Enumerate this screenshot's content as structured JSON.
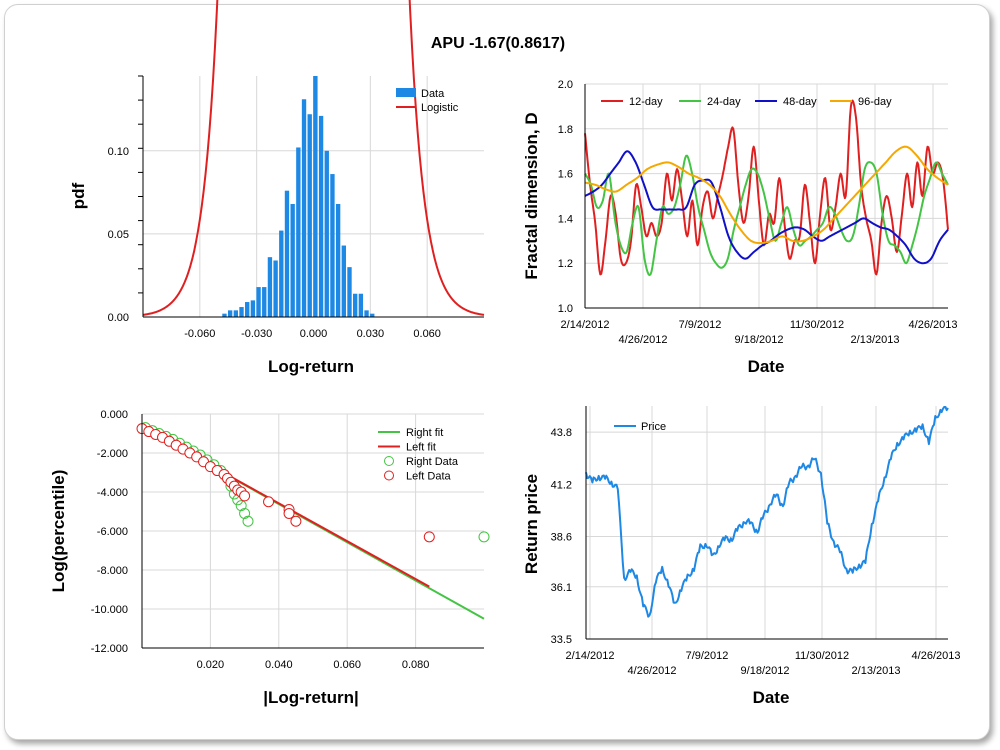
{
  "title": "APU -1.67(0.8617)",
  "colors": {
    "blue": "#1e88e5",
    "red": "#e02020",
    "green": "#44c444",
    "navy": "#1010c8",
    "orange": "#f5a800",
    "grid": "#d8d8d8"
  },
  "chart_data": [
    {
      "type": "bar",
      "name": "histogram",
      "xlabel": "Log-return",
      "ylabel": "pdf",
      "xlim": [
        -0.09,
        0.09
      ],
      "ylim": [
        0,
        0.145
      ],
      "xticks": [
        -0.06,
        -0.03,
        0.0,
        0.03,
        0.06
      ],
      "xtick_labels": [
        "-0.060",
        "-0.030",
        "0.000",
        "0.030",
        "0.060"
      ],
      "yticks": [
        0,
        0.05,
        0.1
      ],
      "ytick_labels": [
        "0.00",
        "0.05",
        "0.10"
      ],
      "legend": [
        "Data",
        "Logistic"
      ],
      "legend_position": "top-right",
      "bin_width": 0.0027,
      "bins": [
        {
          "x": -0.047,
          "y": 0.002
        },
        {
          "x": -0.044,
          "y": 0.004
        },
        {
          "x": -0.041,
          "y": 0.004
        },
        {
          "x": -0.038,
          "y": 0.006
        },
        {
          "x": -0.035,
          "y": 0.009
        },
        {
          "x": -0.032,
          "y": 0.01
        },
        {
          "x": -0.029,
          "y": 0.018
        },
        {
          "x": -0.026,
          "y": 0.018
        },
        {
          "x": -0.023,
          "y": 0.036
        },
        {
          "x": -0.02,
          "y": 0.034
        },
        {
          "x": -0.017,
          "y": 0.052
        },
        {
          "x": -0.014,
          "y": 0.076
        },
        {
          "x": -0.011,
          "y": 0.068
        },
        {
          "x": -0.008,
          "y": 0.102
        },
        {
          "x": -0.005,
          "y": 0.131
        },
        {
          "x": -0.002,
          "y": 0.122
        },
        {
          "x": 0.001,
          "y": 0.145
        },
        {
          "x": 0.004,
          "y": 0.121
        },
        {
          "x": 0.007,
          "y": 0.1
        },
        {
          "x": 0.01,
          "y": 0.086
        },
        {
          "x": 0.013,
          "y": 0.068
        },
        {
          "x": 0.016,
          "y": 0.043
        },
        {
          "x": 0.019,
          "y": 0.03
        },
        {
          "x": 0.022,
          "y": 0.014
        },
        {
          "x": 0.025,
          "y": 0.014
        },
        {
          "x": 0.028,
          "y": 0.004
        },
        {
          "x": 0.031,
          "y": 0.002
        }
      ],
      "logistic": {
        "mu": 0.0,
        "s": 0.0078
      }
    },
    {
      "type": "line",
      "name": "fractal",
      "xlabel": "Date",
      "ylabel": "Fractal dimension, D",
      "ylim": [
        1.0,
        2.0
      ],
      "yticks": [
        1.0,
        1.2,
        1.4,
        1.6,
        1.8,
        2.0
      ],
      "ytick_labels": [
        "1.0",
        "1.2",
        "1.4",
        "1.6",
        "1.8",
        "2.0"
      ],
      "xtick_labels_upper": [
        "2/14/2012",
        "7/9/2012",
        "11/30/2012",
        "4/26/2013"
      ],
      "xtick_labels_lower": [
        "4/26/2012",
        "9/18/2012",
        "2/13/2013"
      ],
      "legend": [
        "12-day",
        "24-day",
        "48-day",
        "96-day"
      ],
      "legend_position": "top",
      "series": [
        {
          "name": "12-day",
          "values": [
            1.78,
            1.55,
            1.38,
            1.15,
            1.3,
            1.5,
            1.42,
            1.22,
            1.2,
            1.3,
            1.55,
            1.45,
            1.32,
            1.38,
            1.32,
            1.38,
            1.6,
            1.48,
            1.62,
            1.48,
            1.32,
            1.48,
            1.28,
            1.45,
            1.52,
            1.4,
            1.5,
            1.6,
            1.72,
            1.8,
            1.55,
            1.38,
            1.5,
            1.72,
            1.48,
            1.28,
            1.42,
            1.38,
            1.58,
            1.38,
            1.22,
            1.3,
            1.32,
            1.55,
            1.38,
            1.2,
            1.42,
            1.58,
            1.35,
            1.45,
            1.6,
            1.5,
            1.9,
            1.85,
            1.55,
            1.4,
            1.3,
            1.15,
            1.38,
            1.5,
            1.4,
            1.25,
            1.42,
            1.6,
            1.45,
            1.65,
            1.5,
            1.72,
            1.6,
            1.65,
            1.58,
            1.35
          ]
        },
        {
          "name": "24-day",
          "values": [
            1.6,
            1.55,
            1.45,
            1.48,
            1.6,
            1.4,
            1.28,
            1.25,
            1.38,
            1.45,
            1.22,
            1.15,
            1.3,
            1.45,
            1.42,
            1.45,
            1.55,
            1.68,
            1.6,
            1.45,
            1.35,
            1.25,
            1.2,
            1.18,
            1.22,
            1.35,
            1.45,
            1.55,
            1.62,
            1.6,
            1.52,
            1.4,
            1.3,
            1.38,
            1.45,
            1.35,
            1.28,
            1.3,
            1.32,
            1.35,
            1.38,
            1.45,
            1.42,
            1.35,
            1.3,
            1.32,
            1.45,
            1.62,
            1.65,
            1.6,
            1.42,
            1.3,
            1.28,
            1.25,
            1.2,
            1.28,
            1.38,
            1.5,
            1.58,
            1.65,
            1.6,
            1.55
          ]
        },
        {
          "name": "48-day",
          "values": [
            1.5,
            1.52,
            1.55,
            1.6,
            1.65,
            1.7,
            1.65,
            1.55,
            1.45,
            1.44,
            1.44,
            1.44,
            1.45,
            1.55,
            1.57,
            1.56,
            1.45,
            1.32,
            1.25,
            1.22,
            1.25,
            1.28,
            1.3,
            1.33,
            1.35,
            1.36,
            1.35,
            1.32,
            1.3,
            1.32,
            1.34,
            1.36,
            1.38,
            1.4,
            1.38,
            1.36,
            1.35,
            1.32,
            1.28,
            1.22,
            1.2,
            1.22,
            1.3,
            1.35
          ]
        },
        {
          "name": "96-day",
          "values": [
            1.56,
            1.55,
            1.53,
            1.52,
            1.55,
            1.58,
            1.62,
            1.64,
            1.65,
            1.63,
            1.6,
            1.58,
            1.55,
            1.5,
            1.42,
            1.35,
            1.3,
            1.29,
            1.3,
            1.32,
            1.3,
            1.3,
            1.32,
            1.35,
            1.4,
            1.45,
            1.5,
            1.55,
            1.6,
            1.65,
            1.7,
            1.72,
            1.68,
            1.62,
            1.58,
            1.55
          ]
        }
      ]
    },
    {
      "type": "scatter",
      "name": "tail",
      "xlabel": "|Log-return|",
      "ylabel": "Log(percentile)",
      "xlim": [
        0,
        0.1
      ],
      "ylim": [
        -12,
        0
      ],
      "xticks": [
        0.02,
        0.04,
        0.06,
        0.08
      ],
      "xtick_labels": [
        "0.020",
        "0.040",
        "0.060",
        "0.080"
      ],
      "yticks": [
        0,
        -2,
        -4,
        -6,
        -8,
        -10,
        -12
      ],
      "ytick_labels": [
        "0.000",
        "-2.000",
        "-4.000",
        "-6.000",
        "-8.000",
        "-10.000",
        "-12.000"
      ],
      "legend": [
        "Right fit",
        "Left fit",
        "Right Data",
        "Left Data"
      ],
      "legend_position": "top-right",
      "right_fit": [
        [
          0,
          -0.7
        ],
        [
          0.1,
          -10.5
        ]
      ],
      "left_fit": [
        [
          0,
          -0.7
        ],
        [
          0.084,
          -8.85
        ]
      ],
      "right_data": [
        [
          0.001,
          -0.7
        ],
        [
          0.003,
          -0.85
        ],
        [
          0.005,
          -1.0
        ],
        [
          0.007,
          -1.15
        ],
        [
          0.009,
          -1.3
        ],
        [
          0.011,
          -1.5
        ],
        [
          0.013,
          -1.7
        ],
        [
          0.015,
          -1.9
        ],
        [
          0.017,
          -2.1
        ],
        [
          0.019,
          -2.35
        ],
        [
          0.021,
          -2.6
        ],
        [
          0.023,
          -2.9
        ],
        [
          0.025,
          -3.3
        ],
        [
          0.026,
          -3.7
        ],
        [
          0.027,
          -4.1
        ],
        [
          0.028,
          -4.4
        ],
        [
          0.029,
          -4.7
        ],
        [
          0.03,
          -5.1
        ],
        [
          0.031,
          -5.5
        ],
        [
          0.1,
          -6.3
        ]
      ],
      "left_data": [
        [
          0.0,
          -0.75
        ],
        [
          0.002,
          -0.9
        ],
        [
          0.004,
          -1.05
        ],
        [
          0.006,
          -1.2
        ],
        [
          0.008,
          -1.4
        ],
        [
          0.01,
          -1.6
        ],
        [
          0.012,
          -1.8
        ],
        [
          0.014,
          -2.0
        ],
        [
          0.016,
          -2.2
        ],
        [
          0.018,
          -2.45
        ],
        [
          0.02,
          -2.7
        ],
        [
          0.022,
          -2.9
        ],
        [
          0.024,
          -3.1
        ],
        [
          0.025,
          -3.3
        ],
        [
          0.026,
          -3.5
        ],
        [
          0.027,
          -3.7
        ],
        [
          0.028,
          -3.9
        ],
        [
          0.029,
          -4.0
        ],
        [
          0.03,
          -4.2
        ],
        [
          0.037,
          -4.5
        ],
        [
          0.043,
          -4.9
        ],
        [
          0.043,
          -5.1
        ],
        [
          0.045,
          -5.5
        ],
        [
          0.084,
          -6.3
        ]
      ]
    },
    {
      "type": "line",
      "name": "price",
      "xlabel": "Date",
      "ylabel": "Return price",
      "ylim": [
        33.5,
        45.1
      ],
      "yticks": [
        33.5,
        36.1,
        38.6,
        41.2,
        43.8
      ],
      "ytick_labels": [
        "33.5",
        "36.1",
        "38.6",
        "41.2",
        "43.8"
      ],
      "xtick_labels_upper": [
        "2/14/2012",
        "7/9/2012",
        "11/30/2012",
        "4/26/2013"
      ],
      "xtick_labels_lower": [
        "4/26/2012",
        "9/18/2012",
        "2/13/2013"
      ],
      "legend": [
        "Price"
      ],
      "legend_position": "top-left",
      "series": [
        {
          "name": "Price",
          "values": [
            41.8,
            41.3,
            41.6,
            41.5,
            41.3,
            41.0,
            36.5,
            36.9,
            36.6,
            35.2,
            34.6,
            36.4,
            37.0,
            36.2,
            35.2,
            36.0,
            36.6,
            37.0,
            38.1,
            38.2,
            37.6,
            38.2,
            38.5,
            38.5,
            39.0,
            39.4,
            39.2,
            38.9,
            39.6,
            40.3,
            40.6,
            40.2,
            41.2,
            41.7,
            42.0,
            42.2,
            42.4,
            41.8,
            39.2,
            38.4,
            37.8,
            37.0,
            36.8,
            37.2,
            37.3,
            39.2,
            40.4,
            41.5,
            42.5,
            43.2,
            43.5,
            43.8,
            43.9,
            44.1,
            43.3,
            44.5,
            44.9,
            45.0
          ]
        }
      ]
    }
  ]
}
